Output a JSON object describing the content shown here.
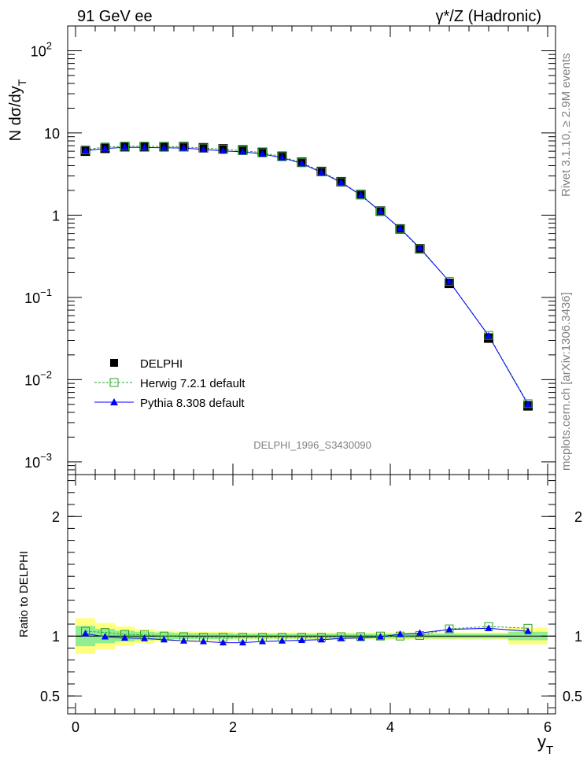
{
  "header": {
    "left": "91 GeV ee",
    "right": "γ*/Z (Hadronic)"
  },
  "side_text": {
    "rivet": "Rivet 3.1.10, ≥ 2.9M events",
    "mcplots": "mcplots.cern.ch [arXiv:1306.3436]"
  },
  "analysis_label": "DELPHI_1996_S3430090",
  "colors": {
    "data": "#000000",
    "herwig": "#2ca02c",
    "pythia": "#0000ff",
    "band_inner": "#90ee90",
    "band_outer": "#ffff80"
  },
  "chart_data": [
    {
      "type": "scatter",
      "ylabel": "N dσ/dy",
      "ylabel_sub": "T",
      "yscale": "log",
      "ylim": [
        0.0007,
        200
      ],
      "xlim": [
        -0.1,
        6.1
      ],
      "yticks": [
        {
          "value": 100,
          "mant": "10",
          "exp": "2"
        },
        {
          "value": 10,
          "mant": "10",
          "exp": ""
        },
        {
          "value": 1,
          "mant": "1",
          "exp": ""
        },
        {
          "value": 0.1,
          "mant": "10",
          "exp": "−1"
        },
        {
          "value": 0.01,
          "mant": "10",
          "exp": "−2"
        },
        {
          "value": 0.001,
          "mant": "10",
          "exp": "−3"
        }
      ],
      "legend": [
        {
          "key": "data",
          "label": "DELPHI"
        },
        {
          "key": "herwig",
          "label": "Herwig 7.2.1 default"
        },
        {
          "key": "pythia",
          "label": "Pythia 8.308 default"
        }
      ],
      "x": [
        0.125,
        0.375,
        0.625,
        0.875,
        1.125,
        1.375,
        1.625,
        1.875,
        2.125,
        2.375,
        2.625,
        2.875,
        3.125,
        3.375,
        3.625,
        3.875,
        4.125,
        4.375,
        4.75,
        5.25,
        5.75
      ],
      "series": [
        {
          "name": "DELPHI",
          "key": "data",
          "values": [
            6.0,
            6.5,
            6.8,
            6.8,
            6.8,
            6.8,
            6.6,
            6.4,
            6.2,
            5.8,
            5.2,
            4.4,
            3.4,
            2.55,
            1.78,
            1.12,
            0.68,
            0.39,
            0.148,
            0.032,
            0.0048
          ]
        },
        {
          "name": "Herwig 7.2.1 default",
          "key": "herwig",
          "values": [
            6.25,
            6.75,
            6.9,
            6.9,
            6.85,
            6.75,
            6.55,
            6.35,
            6.1,
            5.75,
            5.15,
            4.35,
            3.38,
            2.54,
            1.77,
            1.12,
            0.68,
            0.39,
            0.157,
            0.0345,
            0.0051
          ]
        },
        {
          "name": "Pythia 8.308 default",
          "key": "pythia",
          "values": [
            6.1,
            6.45,
            6.7,
            6.65,
            6.6,
            6.55,
            6.3,
            6.05,
            5.9,
            5.55,
            5.0,
            4.25,
            3.3,
            2.5,
            1.75,
            1.11,
            0.69,
            0.4,
            0.156,
            0.0341,
            0.005
          ]
        }
      ]
    },
    {
      "type": "scatter",
      "xlabel": "y",
      "xlabel_sub": "T",
      "ylabel": "Ratio to DELPHI",
      "ylim": [
        0.35,
        2.35
      ],
      "xlim": [
        -0.1,
        6.1
      ],
      "yticks": [
        0.5,
        1,
        2
      ],
      "ytick_labels": [
        "0.5",
        "1",
        "2"
      ],
      "xticks": [
        0,
        2,
        4,
        6
      ],
      "xtick_labels": [
        "0",
        "2",
        "4",
        "6"
      ],
      "x": [
        0.125,
        0.375,
        0.625,
        0.875,
        1.125,
        1.375,
        1.625,
        1.875,
        2.125,
        2.375,
        2.625,
        2.875,
        3.125,
        3.375,
        3.625,
        3.875,
        4.125,
        4.375,
        4.75,
        5.25,
        5.75
      ],
      "band_edges": [
        0.0,
        0.25,
        0.5,
        0.75,
        1.0,
        1.25,
        1.5,
        1.75,
        2.0,
        2.25,
        2.5,
        2.75,
        3.0,
        3.25,
        3.5,
        3.75,
        4.0,
        4.25,
        4.5,
        5.0,
        5.5,
        6.0
      ],
      "band_inner": [
        0.085,
        0.06,
        0.045,
        0.035,
        0.03,
        0.025,
        0.025,
        0.025,
        0.02,
        0.02,
        0.02,
        0.02,
        0.02,
        0.02,
        0.02,
        0.02,
        0.02,
        0.02,
        0.02,
        0.02,
        0.035
      ],
      "band_outer": [
        0.15,
        0.11,
        0.08,
        0.06,
        0.045,
        0.04,
        0.035,
        0.035,
        0.03,
        0.03,
        0.03,
        0.03,
        0.03,
        0.03,
        0.03,
        0.03,
        0.03,
        0.03,
        0.03,
        0.03,
        0.07
      ],
      "series": [
        {
          "name": "Herwig 7.2.1 default",
          "key": "herwig",
          "values": [
            1.04,
            1.03,
            1.015,
            1.01,
            1.0,
            0.995,
            0.99,
            0.99,
            0.99,
            0.99,
            0.99,
            0.99,
            0.99,
            0.995,
            0.995,
            1.0,
            1.0,
            1.005,
            1.06,
            1.08,
            1.065
          ]
        },
        {
          "name": "Pythia 8.308 default",
          "key": "pythia",
          "values": [
            1.02,
            0.995,
            0.985,
            0.98,
            0.97,
            0.96,
            0.955,
            0.945,
            0.945,
            0.955,
            0.96,
            0.965,
            0.97,
            0.98,
            0.985,
            0.995,
            1.015,
            1.025,
            1.055,
            1.065,
            1.04
          ]
        }
      ]
    }
  ]
}
